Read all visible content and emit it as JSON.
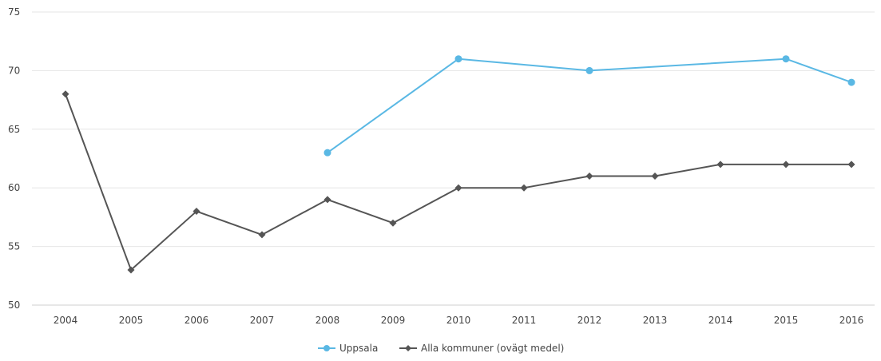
{
  "chart_data": {
    "type": "line",
    "title": "",
    "xlabel": "",
    "ylabel": "",
    "categories": [
      "2004",
      "2005",
      "2006",
      "2007",
      "2008",
      "2009",
      "2010",
      "2011",
      "2012",
      "2013",
      "2014",
      "2015",
      "2016"
    ],
    "ylim": [
      50,
      75
    ],
    "yticks": [
      50,
      55,
      60,
      65,
      70,
      75
    ],
    "grid": true,
    "legend_position": "bottom-center",
    "series": [
      {
        "name": "Uppsala",
        "color": "#5ab8e4",
        "marker": "circle",
        "values": [
          null,
          null,
          null,
          null,
          63,
          null,
          71,
          null,
          70,
          null,
          null,
          71,
          69
        ]
      },
      {
        "name": "Alla kommuner (ovägt medel)",
        "color": "#555555",
        "marker": "diamond",
        "values": [
          68,
          53,
          58,
          56,
          59,
          57,
          60,
          60,
          61,
          61,
          62,
          62,
          62
        ]
      }
    ]
  }
}
